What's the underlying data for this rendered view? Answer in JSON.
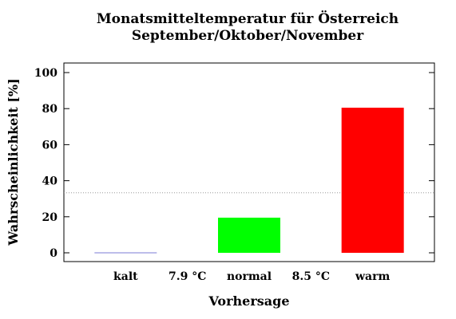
{
  "chart_data": {
    "type": "bar",
    "title": "Monatsmitteltemperatur für Österreich",
    "subtitle": "September/Oktober/November",
    "xlabel": "Vorhersage",
    "ylabel": "Wahrscheinlichkeit [%]",
    "ylim": [
      0,
      105
    ],
    "yticks": [
      0,
      20,
      40,
      60,
      80,
      100
    ],
    "reference_line": 33.3,
    "categories": [
      "kalt",
      "normal",
      "warm"
    ],
    "values": [
      0,
      19.5,
      80.5
    ],
    "colors": [
      "#7b7bd6",
      "#00ff00",
      "#ff0000"
    ],
    "thresholds": [
      "7.9 °C",
      "8.5 °C"
    ],
    "grid": false,
    "legend": "none"
  }
}
